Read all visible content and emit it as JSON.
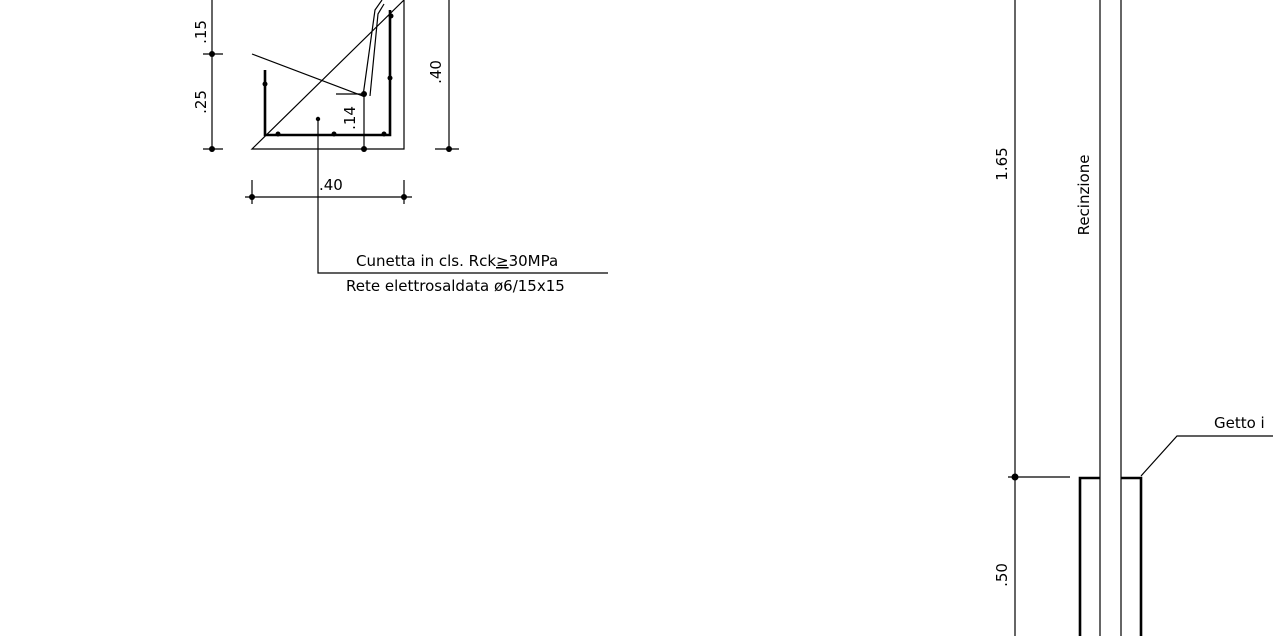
{
  "section_detail": {
    "dim_top_left": ".15",
    "dim_bottom_left": ".25",
    "dim_inner": ".14",
    "dim_height_right": ".40",
    "dim_width_bottom": ".40",
    "note_line1_prefix": "Cunetta in cls. Rck",
    "note_line1_symbol": "≥",
    "note_line1_suffix": "30MPa",
    "note_line2": "Rete elettrosaldata ø6/15x15"
  },
  "fence_detail": {
    "dim_upper": "1.65",
    "dim_lower": ".50",
    "fence_label": "Recinzione",
    "leader_text": "Getto i"
  }
}
